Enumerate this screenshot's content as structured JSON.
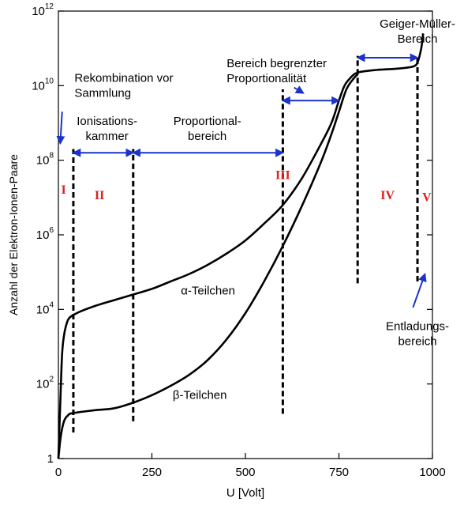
{
  "chart_data": {
    "type": "line",
    "title": "",
    "xlabel": "U [Volt]",
    "ylabel": "Anzahl der Elektron-Ionen-Paare",
    "xlim": [
      0,
      1000
    ],
    "ylim_log10": [
      0,
      12
    ],
    "y_scale": "log",
    "x_ticks": [
      "0",
      "250",
      "500",
      "750",
      "1000"
    ],
    "y_ticks": [
      {
        "base": "1",
        "exp": ""
      },
      {
        "base": "10",
        "exp": "2"
      },
      {
        "base": "10",
        "exp": "4"
      },
      {
        "base": "10",
        "exp": "6"
      },
      {
        "base": "10",
        "exp": "8"
      },
      {
        "base": "10",
        "exp": "10"
      },
      {
        "base": "10",
        "exp": "12"
      }
    ],
    "grid": false,
    "series": [
      {
        "name": "α-Teilchen",
        "x": [
          0,
          5,
          10,
          15,
          20,
          25,
          30,
          40,
          60,
          100,
          150,
          200,
          250,
          300,
          350,
          400,
          450,
          500,
          550,
          600,
          650,
          700,
          730,
          750,
          765,
          780,
          800,
          850,
          900,
          930,
          950,
          960,
          970,
          975
        ],
        "y_log10": [
          0,
          1.5,
          2.8,
          3.3,
          3.55,
          3.7,
          3.78,
          3.85,
          3.95,
          4.1,
          4.25,
          4.4,
          4.55,
          4.75,
          4.95,
          5.2,
          5.5,
          5.85,
          6.3,
          6.8,
          7.5,
          8.4,
          9.0,
          9.6,
          10.0,
          10.2,
          10.35,
          10.42,
          10.45,
          10.48,
          10.52,
          10.62,
          11.0,
          11.4
        ]
      },
      {
        "name": "β-Teilchen",
        "x": [
          0,
          5,
          10,
          15,
          20,
          25,
          30,
          40,
          60,
          100,
          150,
          200,
          250,
          300,
          350,
          400,
          450,
          500,
          550,
          600,
          650,
          700,
          730,
          750,
          770,
          790,
          800
        ],
        "y_log10": [
          0,
          0.5,
          0.8,
          1.0,
          1.1,
          1.15,
          1.2,
          1.22,
          1.25,
          1.3,
          1.35,
          1.5,
          1.7,
          1.95,
          2.25,
          2.65,
          3.2,
          3.9,
          4.75,
          5.7,
          6.75,
          7.9,
          8.7,
          9.3,
          9.9,
          10.2,
          10.3
        ]
      }
    ],
    "series_labels": [
      {
        "text": "α-Teilchen",
        "x": 400,
        "y_log10": 4.4
      },
      {
        "text": "β-Teilchen",
        "x": 378,
        "y_log10": 1.6
      }
    ],
    "region_boundaries": [
      {
        "x": 40,
        "y_log10": [
          0.7,
          8.3
        ]
      },
      {
        "x": 200,
        "y_log10": [
          1.0,
          8.3
        ]
      },
      {
        "x": 600,
        "y_log10": [
          1.2,
          9.9
        ]
      },
      {
        "x": 800,
        "y_log10": [
          4.7,
          10.8
        ]
      },
      {
        "x": 960,
        "y_log10": [
          4.75,
          10.8
        ]
      }
    ],
    "regions": [
      {
        "label": "I",
        "x": 14,
        "y_log10": 7.1
      },
      {
        "label": "II",
        "x": 110,
        "y_log10": 6.95
      },
      {
        "label": "III",
        "x": 600,
        "y_log10": 7.5
      },
      {
        "label": "IV",
        "x": 880,
        "y_log10": 6.95
      },
      {
        "label": "V",
        "x": 985,
        "y_log10": 6.9
      }
    ],
    "annotations": {
      "rekombination": [
        "Rekombination vor",
        "Sammlung"
      ],
      "ionisationskammer": [
        "Ionisations-",
        "kammer"
      ],
      "proportionalbereich": [
        "Proportional-",
        "bereich"
      ],
      "begrenzt": [
        "Bereich begrenzter",
        "Proportionalität"
      ],
      "geiger": [
        "Geiger-Müller-",
        "Bereich"
      ],
      "entladung": [
        "Entladungs-",
        "bereich"
      ]
    },
    "colors": {
      "curve": "#000000",
      "arrow": "#1a33cc",
      "region_label": "#e0201c",
      "axis": "#000000"
    }
  }
}
